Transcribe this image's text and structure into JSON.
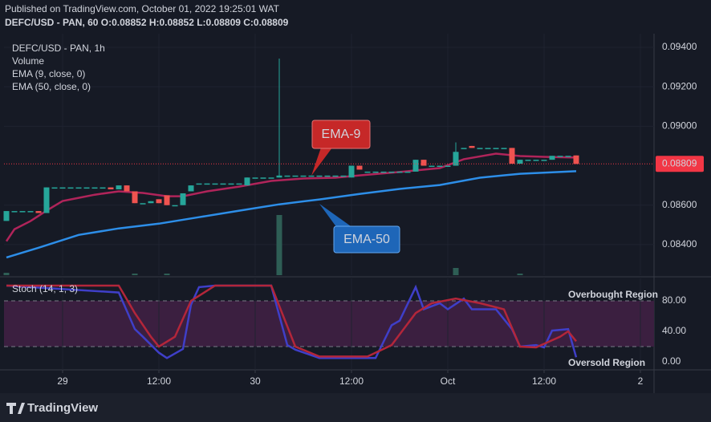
{
  "header": {
    "published": "Published on TradingView.com, October 01, 2022 19:25:01 WAT",
    "ohlc": "DEFC/USD - PAN, 60 O:0.08852 H:0.08852 L:0.08809 C:0.08809"
  },
  "chart_data": [
    {
      "type": "candlestick",
      "legend": [
        "DEFC/USD - PAN, 1h",
        "Volume",
        "EMA (9, close, 0)",
        "EMA (50, close, 0)"
      ],
      "xlim": [
        -7.3,
        73.7
      ],
      "ylim": [
        0.08245,
        0.09469
      ],
      "yticks": [
        {
          "value": 0.094,
          "label": "0.09400"
        },
        {
          "value": 0.092,
          "label": "0.09200"
        },
        {
          "value": 0.09,
          "label": "0.09000"
        },
        {
          "value": 0.086,
          "label": "0.08600"
        },
        {
          "value": 0.084,
          "label": "0.08400"
        }
      ],
      "grid": true,
      "up_color": "#26a69a",
      "down_color": "#ef5350",
      "candles": [
        {
          "t": -7,
          "o": 0.0852,
          "h": 0.0857,
          "l": 0.0852,
          "c": 0.0857
        },
        {
          "t": -6,
          "o": 0.0857,
          "h": 0.0857,
          "l": 0.0857,
          "c": 0.0857
        },
        {
          "t": -5,
          "o": 0.0857,
          "h": 0.0857,
          "l": 0.0857,
          "c": 0.0857
        },
        {
          "t": -4,
          "o": 0.0857,
          "h": 0.0857,
          "l": 0.0857,
          "c": 0.0857
        },
        {
          "t": -3,
          "o": 0.0857,
          "h": 0.0857,
          "l": 0.0856,
          "c": 0.0856
        },
        {
          "t": -2,
          "o": 0.0856,
          "h": 0.0869,
          "l": 0.0856,
          "c": 0.0869
        },
        {
          "t": -1,
          "o": 0.0869,
          "h": 0.0869,
          "l": 0.0869,
          "c": 0.0869
        },
        {
          "t": 0,
          "o": 0.0869,
          "h": 0.0869,
          "l": 0.0869,
          "c": 0.0869
        },
        {
          "t": 1,
          "o": 0.0869,
          "h": 0.0869,
          "l": 0.0869,
          "c": 0.0869
        },
        {
          "t": 2,
          "o": 0.0869,
          "h": 0.0869,
          "l": 0.0869,
          "c": 0.0869
        },
        {
          "t": 3,
          "o": 0.0869,
          "h": 0.0869,
          "l": 0.0869,
          "c": 0.0869
        },
        {
          "t": 4,
          "o": 0.0869,
          "h": 0.0869,
          "l": 0.0869,
          "c": 0.0869
        },
        {
          "t": 5,
          "o": 0.0869,
          "h": 0.0869,
          "l": 0.0869,
          "c": 0.0869
        },
        {
          "t": 6,
          "o": 0.0869,
          "h": 0.0869,
          "l": 0.0868,
          "c": 0.0868
        },
        {
          "t": 7,
          "o": 0.0868,
          "h": 0.087,
          "l": 0.0868,
          "c": 0.087
        },
        {
          "t": 8,
          "o": 0.087,
          "h": 0.087,
          "l": 0.0867,
          "c": 0.0867
        },
        {
          "t": 9,
          "o": 0.0867,
          "h": 0.0867,
          "l": 0.0861,
          "c": 0.0861
        },
        {
          "t": 10,
          "o": 0.0861,
          "h": 0.0861,
          "l": 0.0861,
          "c": 0.0861
        },
        {
          "t": 11,
          "o": 0.0861,
          "h": 0.0862,
          "l": 0.0861,
          "c": 0.0862
        },
        {
          "t": 12,
          "o": 0.0863,
          "h": 0.0863,
          "l": 0.0861,
          "c": 0.0861
        },
        {
          "t": 13,
          "o": 0.0865,
          "h": 0.0865,
          "l": 0.086,
          "c": 0.086
        },
        {
          "t": 14,
          "o": 0.086,
          "h": 0.086,
          "l": 0.086,
          "c": 0.086
        },
        {
          "t": 15,
          "o": 0.086,
          "h": 0.0866,
          "l": 0.086,
          "c": 0.0866
        },
        {
          "t": 16,
          "o": 0.0867,
          "h": 0.087,
          "l": 0.0867,
          "c": 0.087
        },
        {
          "t": 17,
          "o": 0.0871,
          "h": 0.0871,
          "l": 0.0871,
          "c": 0.0871
        },
        {
          "t": 18,
          "o": 0.0871,
          "h": 0.0871,
          "l": 0.0871,
          "c": 0.0871
        },
        {
          "t": 19,
          "o": 0.0871,
          "h": 0.0871,
          "l": 0.0871,
          "c": 0.0871
        },
        {
          "t": 20,
          "o": 0.0871,
          "h": 0.0871,
          "l": 0.0871,
          "c": 0.0871
        },
        {
          "t": 21,
          "o": 0.0871,
          "h": 0.0871,
          "l": 0.0871,
          "c": 0.0871
        },
        {
          "t": 22,
          "o": 0.0871,
          "h": 0.0871,
          "l": 0.0871,
          "c": 0.0871
        },
        {
          "t": 23,
          "o": 0.087,
          "h": 0.0874,
          "l": 0.087,
          "c": 0.0874
        },
        {
          "t": 24,
          "o": 0.0874,
          "h": 0.0874,
          "l": 0.0874,
          "c": 0.0874
        },
        {
          "t": 25,
          "o": 0.0874,
          "h": 0.0874,
          "l": 0.0874,
          "c": 0.0874
        },
        {
          "t": 26,
          "o": 0.0874,
          "h": 0.0874,
          "l": 0.0874,
          "c": 0.0874
        },
        {
          "t": 27,
          "o": 0.0874,
          "h": 0.09343,
          "l": 0.0874,
          "c": 0.0875
        },
        {
          "t": 28,
          "o": 0.0875,
          "h": 0.0875,
          "l": 0.0875,
          "c": 0.0875
        },
        {
          "t": 29,
          "o": 0.0875,
          "h": 0.0875,
          "l": 0.0875,
          "c": 0.0875
        },
        {
          "t": 30,
          "o": 0.0875,
          "h": 0.0875,
          "l": 0.0875,
          "c": 0.0875
        },
        {
          "t": 31,
          "o": 0.0875,
          "h": 0.0875,
          "l": 0.0875,
          "c": 0.0875
        },
        {
          "t": 32,
          "o": 0.0875,
          "h": 0.0875,
          "l": 0.0875,
          "c": 0.0875
        },
        {
          "t": 33,
          "o": 0.0875,
          "h": 0.0875,
          "l": 0.0875,
          "c": 0.0875
        },
        {
          "t": 34,
          "o": 0.0875,
          "h": 0.0875,
          "l": 0.0875,
          "c": 0.0875
        },
        {
          "t": 35,
          "o": 0.0875,
          "h": 0.0875,
          "l": 0.0875,
          "c": 0.0875
        },
        {
          "t": 36,
          "o": 0.0874,
          "h": 0.088,
          "l": 0.0874,
          "c": 0.088
        },
        {
          "t": 37,
          "o": 0.088,
          "h": 0.088,
          "l": 0.0878,
          "c": 0.0878
        },
        {
          "t": 38,
          "o": 0.0877,
          "h": 0.0877,
          "l": 0.0877,
          "c": 0.0877
        },
        {
          "t": 39,
          "o": 0.0877,
          "h": 0.0877,
          "l": 0.0877,
          "c": 0.0877
        },
        {
          "t": 40,
          "o": 0.0877,
          "h": 0.0877,
          "l": 0.0877,
          "c": 0.0877
        },
        {
          "t": 41,
          "o": 0.0877,
          "h": 0.0877,
          "l": 0.0877,
          "c": 0.0877
        },
        {
          "t": 42,
          "o": 0.0877,
          "h": 0.0877,
          "l": 0.0877,
          "c": 0.0877
        },
        {
          "t": 43,
          "o": 0.0877,
          "h": 0.0877,
          "l": 0.0877,
          "c": 0.0877
        },
        {
          "t": 44,
          "o": 0.0877,
          "h": 0.0883,
          "l": 0.0877,
          "c": 0.0883
        },
        {
          "t": 45,
          "o": 0.0883,
          "h": 0.0883,
          "l": 0.088,
          "c": 0.088
        },
        {
          "t": 46,
          "o": 0.088,
          "h": 0.088,
          "l": 0.088,
          "c": 0.088
        },
        {
          "t": 47,
          "o": 0.088,
          "h": 0.088,
          "l": 0.088,
          "c": 0.088
        },
        {
          "t": 48,
          "o": 0.088,
          "h": 0.088,
          "l": 0.088,
          "c": 0.088
        },
        {
          "t": 49,
          "o": 0.088,
          "h": 0.08918,
          "l": 0.088,
          "c": 0.0887
        },
        {
          "t": 50,
          "o": 0.0889,
          "h": 0.0889,
          "l": 0.0889,
          "c": 0.0889
        },
        {
          "t": 51,
          "o": 0.089,
          "h": 0.089,
          "l": 0.0889,
          "c": 0.0889
        },
        {
          "t": 52,
          "o": 0.0889,
          "h": 0.0889,
          "l": 0.0889,
          "c": 0.0889
        },
        {
          "t": 53,
          "o": 0.0889,
          "h": 0.0889,
          "l": 0.0889,
          "c": 0.0889
        },
        {
          "t": 54,
          "o": 0.0889,
          "h": 0.0889,
          "l": 0.0889,
          "c": 0.0889
        },
        {
          "t": 55,
          "o": 0.0889,
          "h": 0.0889,
          "l": 0.0889,
          "c": 0.0889
        },
        {
          "t": 56,
          "o": 0.0889,
          "h": 0.0889,
          "l": 0.0881,
          "c": 0.0881
        },
        {
          "t": 57,
          "o": 0.0881,
          "h": 0.0883,
          "l": 0.0881,
          "c": 0.0883
        },
        {
          "t": 58,
          "o": 0.0883,
          "h": 0.0883,
          "l": 0.0883,
          "c": 0.0883
        },
        {
          "t": 59,
          "o": 0.0883,
          "h": 0.0883,
          "l": 0.0883,
          "c": 0.0883
        },
        {
          "t": 60,
          "o": 0.0883,
          "h": 0.0883,
          "l": 0.0883,
          "c": 0.0883
        },
        {
          "t": 61,
          "o": 0.0883,
          "h": 0.0885,
          "l": 0.0883,
          "c": 0.0885
        },
        {
          "t": 62,
          "o": 0.0885,
          "h": 0.0885,
          "l": 0.0885,
          "c": 0.0885
        },
        {
          "t": 63,
          "o": 0.0885,
          "h": 0.0885,
          "l": 0.0885,
          "c": 0.0885
        },
        {
          "t": 64,
          "o": 0.08852,
          "h": 0.08852,
          "l": 0.08809,
          "c": 0.08809
        }
      ],
      "series": [
        {
          "name": "EMA-9",
          "color": "#b0245a",
          "x": [
            -7,
            -6,
            -4,
            -2,
            0,
            2,
            4,
            7,
            10,
            13,
            15,
            18,
            22,
            26,
            30,
            34,
            37,
            42,
            47,
            50,
            54,
            57,
            60,
            64
          ],
          "values": [
            0.08417,
            0.08478,
            0.08519,
            0.08572,
            0.08621,
            0.08637,
            0.08653,
            0.0867,
            0.08662,
            0.08645,
            0.08645,
            0.0867,
            0.08694,
            0.08723,
            0.08735,
            0.08739,
            0.08751,
            0.08768,
            0.08788,
            0.08833,
            0.08861,
            0.08849,
            0.08845,
            0.08841
          ]
        },
        {
          "name": "EMA-50",
          "color": "#2d8ee8",
          "x": [
            -7,
            -3,
            2,
            7,
            12,
            17,
            22,
            27,
            32,
            37,
            42,
            47,
            52,
            57,
            64
          ],
          "values": [
            0.08335,
            0.08384,
            0.08449,
            0.08482,
            0.08506,
            0.08539,
            0.08572,
            0.08604,
            0.08629,
            0.08657,
            0.08682,
            0.08702,
            0.08739,
            0.08759,
            0.08772
          ]
        }
      ],
      "volume": {
        "color": "#2e5e55",
        "x": [
          -7,
          9,
          13,
          27,
          49,
          57
        ],
        "values": [
          3,
          2,
          2,
          75,
          9,
          2
        ]
      },
      "last_price": {
        "value": 0.08809,
        "label": "0.08809",
        "color": "#f23645"
      }
    },
    {
      "type": "line",
      "title": "Stoch (14, 1, 3)",
      "xlim": [
        -7.3,
        73.7
      ],
      "ylim": [
        -10.5,
        109.5
      ],
      "yticks": [
        {
          "value": 80,
          "label": "80.00"
        },
        {
          "value": 40,
          "label": "40.00"
        },
        {
          "value": 0,
          "label": "0.00"
        }
      ],
      "xticks": [
        {
          "value": 0,
          "label": "29"
        },
        {
          "value": 12,
          "label": "12:00"
        },
        {
          "value": 24,
          "label": "30"
        },
        {
          "value": 36,
          "label": "12:00"
        },
        {
          "value": 48,
          "label": "Oct"
        },
        {
          "value": 60,
          "label": "12:00"
        },
        {
          "value": 72,
          "label": "2"
        }
      ],
      "band": [
        20,
        80
      ],
      "band_color": "#3b1f40",
      "overbought_label": "Overbought Region",
      "oversold_label": "Oversold Region",
      "series": [
        {
          "color": "#3f3fc8",
          "x": [
            -7,
            7,
            9,
            10,
            12,
            13,
            15,
            16,
            17,
            19,
            26,
            28,
            29,
            32,
            39,
            41,
            42,
            44,
            45,
            47,
            48,
            50,
            51,
            54,
            56,
            57,
            59,
            60,
            61,
            63,
            64
          ],
          "values": [
            100,
            91,
            43,
            33,
            12,
            5,
            17,
            75,
            98,
            100,
            100,
            22,
            16,
            5,
            5,
            48,
            54,
            98,
            69,
            77,
            69,
            83,
            69,
            69,
            43,
            20,
            22,
            19,
            41,
            43,
            6
          ]
        },
        {
          "color": "#b3263a",
          "x": [
            -7,
            7,
            9,
            11,
            12,
            14,
            16,
            19,
            26,
            29,
            32,
            38,
            41,
            44,
            46,
            49,
            52,
            55,
            57,
            59,
            62,
            63,
            64
          ],
          "values": [
            100,
            100,
            64,
            33,
            20,
            33,
            80,
            100,
            100,
            20,
            7,
            7,
            22,
            64,
            77,
            83,
            77,
            69,
            20,
            19,
            33,
            40,
            27
          ]
        }
      ]
    }
  ],
  "footer": {
    "brand": "TradingView"
  }
}
